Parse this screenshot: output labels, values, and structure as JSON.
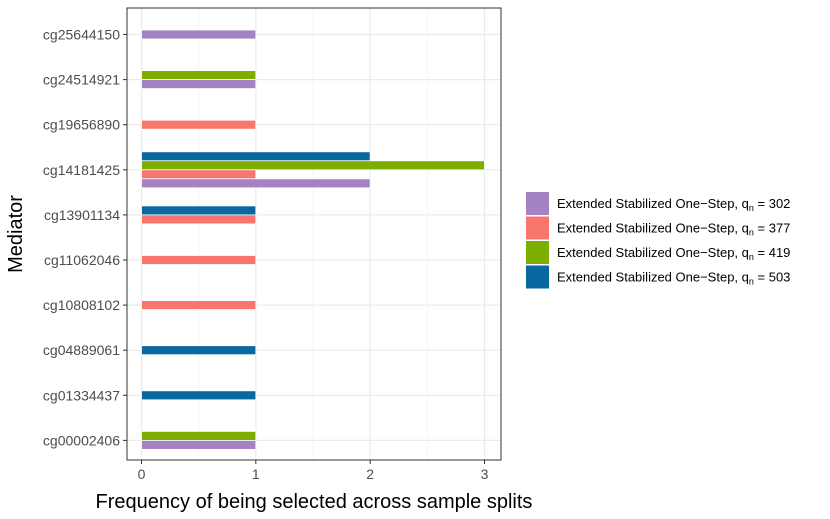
{
  "chart_data": {
    "type": "bar",
    "orientation": "horizontal",
    "xlabel": "Frequency of being selected across sample splits",
    "ylabel": "Mediator",
    "xlim": [
      0,
      3
    ],
    "xticks": [
      "0",
      "1",
      "2",
      "3"
    ],
    "categories": [
      "cg25644150",
      "cg24514921",
      "cg19656890",
      "cg14181425",
      "cg13901134",
      "cg11062046",
      "cg10808102",
      "cg04889061",
      "cg01334437",
      "cg00002406"
    ],
    "series": [
      {
        "name": "q_n = 302",
        "label_prefix": "Extended Stabilized One−Step, q",
        "label_sub": "n",
        "label_suffix": " = 302",
        "color": "#A583C3",
        "values": {
          "cg25644150": 1,
          "cg24514921": 1,
          "cg14181425": 2,
          "cg00002406": 1
        }
      },
      {
        "name": "q_n = 377",
        "label_prefix": "Extended Stabilized One−Step, q",
        "label_sub": "n",
        "label_suffix": " = 377",
        "color": "#F8766D",
        "values": {
          "cg19656890": 1,
          "cg14181425": 1,
          "cg13901134": 1,
          "cg11062046": 1,
          "cg10808102": 1
        }
      },
      {
        "name": "q_n = 419",
        "label_prefix": "Extended Stabilized One−Step, q",
        "label_sub": "n",
        "label_suffix": " = 419",
        "color": "#7CAE00",
        "values": {
          "cg24514921": 1,
          "cg14181425": 3,
          "cg00002406": 1
        }
      },
      {
        "name": "q_n = 503",
        "label_prefix": "Extended Stabilized One−Step, q",
        "label_sub": "n",
        "label_suffix": " = 503",
        "color": "#0A68A0",
        "values": {
          "cg14181425": 2,
          "cg13901134": 1,
          "cg04889061": 1,
          "cg01334437": 1
        }
      }
    ],
    "grid": true,
    "legend_position": "right"
  }
}
